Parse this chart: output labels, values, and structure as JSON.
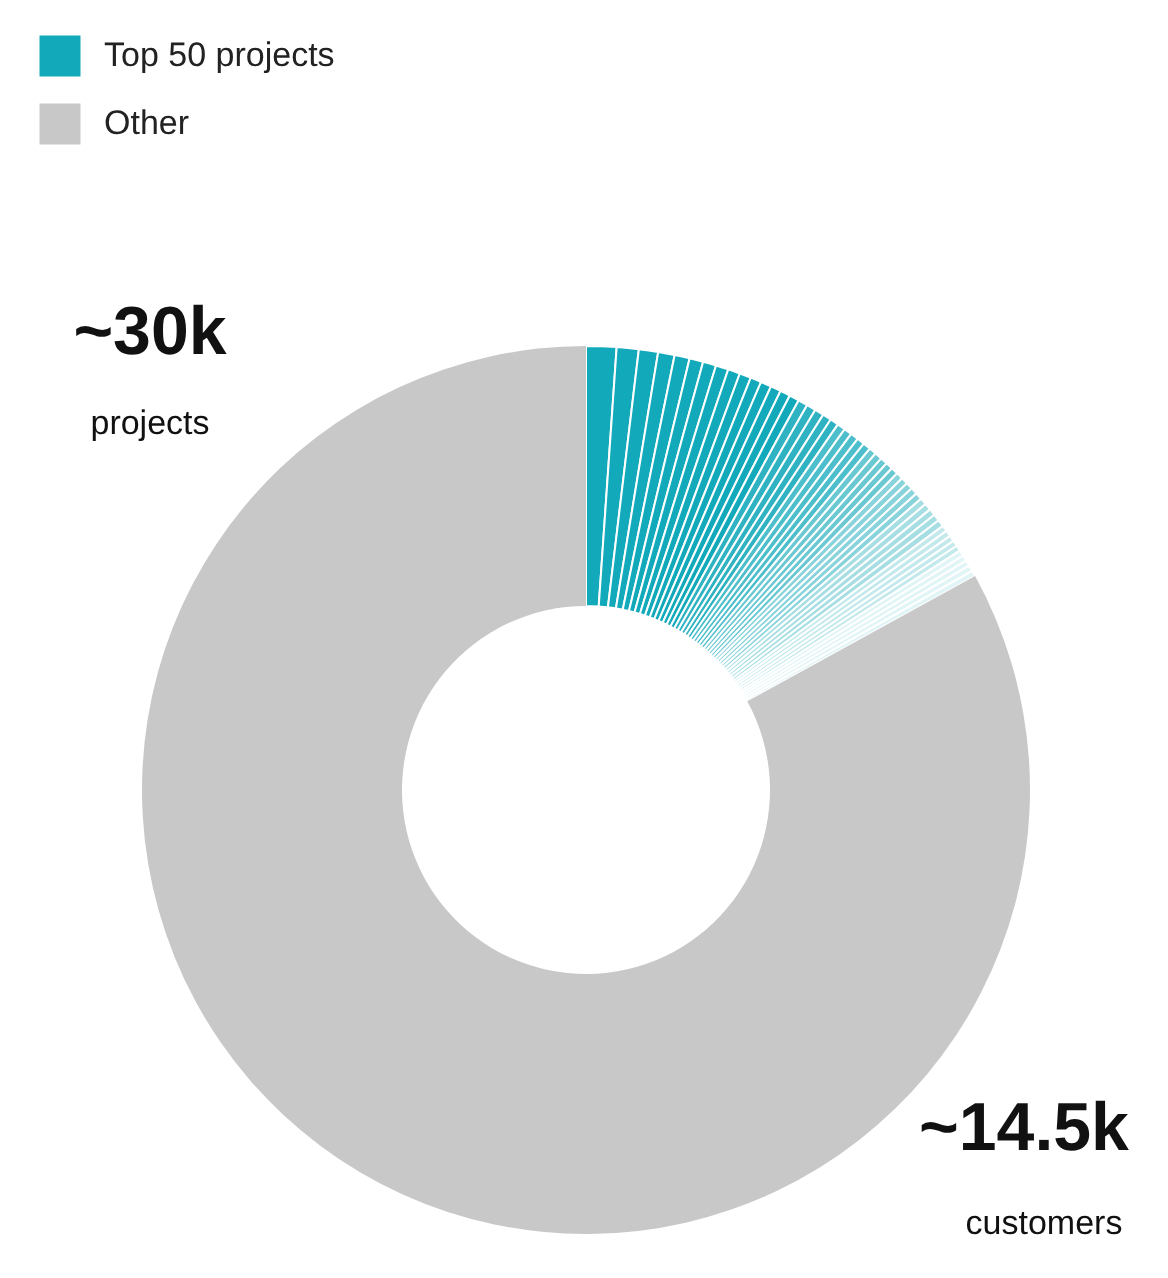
{
  "chart_data": {
    "type": "donut",
    "legend": "top left",
    "annotations": [
      "~30k",
      "projects",
      "~14.5k",
      "customers"
    ],
    "categories": [
      "Top 50 projects",
      null,
      null,
      null,
      null,
      null,
      null,
      null,
      null,
      null,
      null,
      null,
      null,
      null,
      null,
      null,
      null,
      null,
      null,
      null,
      null,
      null,
      null,
      null,
      null,
      null,
      null,
      null,
      null,
      null,
      null,
      null,
      null,
      null,
      null,
      null,
      null,
      null,
      null,
      null,
      null,
      null,
      null,
      null,
      null,
      null,
      null,
      null,
      null,
      null,
      "Other"
    ],
    "values": [
      1.1,
      0.8,
      0.7,
      0.6,
      0.55,
      0.5,
      0.48,
      0.46,
      0.44,
      0.42,
      0.4,
      0.39,
      0.38,
      0.37,
      0.36,
      0.35,
      0.34,
      0.33,
      0.32,
      0.31,
      0.3,
      0.29,
      0.29,
      0.28,
      0.28,
      0.27,
      0.27,
      0.26,
      0.26,
      0.26,
      0.25,
      0.25,
      0.25,
      0.25,
      0.25,
      0.25,
      0.25,
      0.25,
      0.25,
      0.25,
      0.22,
      0.22,
      0.22,
      0.21,
      0.21,
      0.21,
      0.21,
      0.21,
      0.22,
      0.21,
      83.0
    ],
    "colors": [
      "#12a9ba",
      "#12a9ba",
      "#12a9ba",
      "#12a9ba",
      "#12a9ba",
      "#12a9ba",
      "#12a9ba",
      "#12a9ba",
      "#12a9ba",
      "#12a9ba",
      "#12a9ba",
      "#12a9ba",
      "#12a9ba",
      "#12a9ba",
      "#12a9ba",
      "#2fb3c2",
      "#2fb3c2",
      "#2fb3c2",
      "#2fb3c2",
      "#2fb3c2",
      "#4dbecb",
      "#4dbecb",
      "#4dbecb",
      "#4dbecb",
      "#4dbecb",
      "#6ac8d3",
      "#6ac8d3",
      "#6ac8d3",
      "#6ac8d3",
      "#6ac8d3",
      "#88d3dc",
      "#88d3dc",
      "#88d3dc",
      "#88d3dc",
      "#88d3dc",
      "#a6dee4",
      "#a6dee4",
      "#a6dee4",
      "#a6dee4",
      "#a6dee4",
      "#c3e9ed",
      "#c3e9ed",
      "#c3e9ed",
      "#c3e9ed",
      "#c3e9ed",
      "#e1f4f6",
      "#e1f4f6",
      "#e1f4f6",
      "#e1f4f6",
      "#e1f4f6",
      "#c8c8c8"
    ]
  }
}
